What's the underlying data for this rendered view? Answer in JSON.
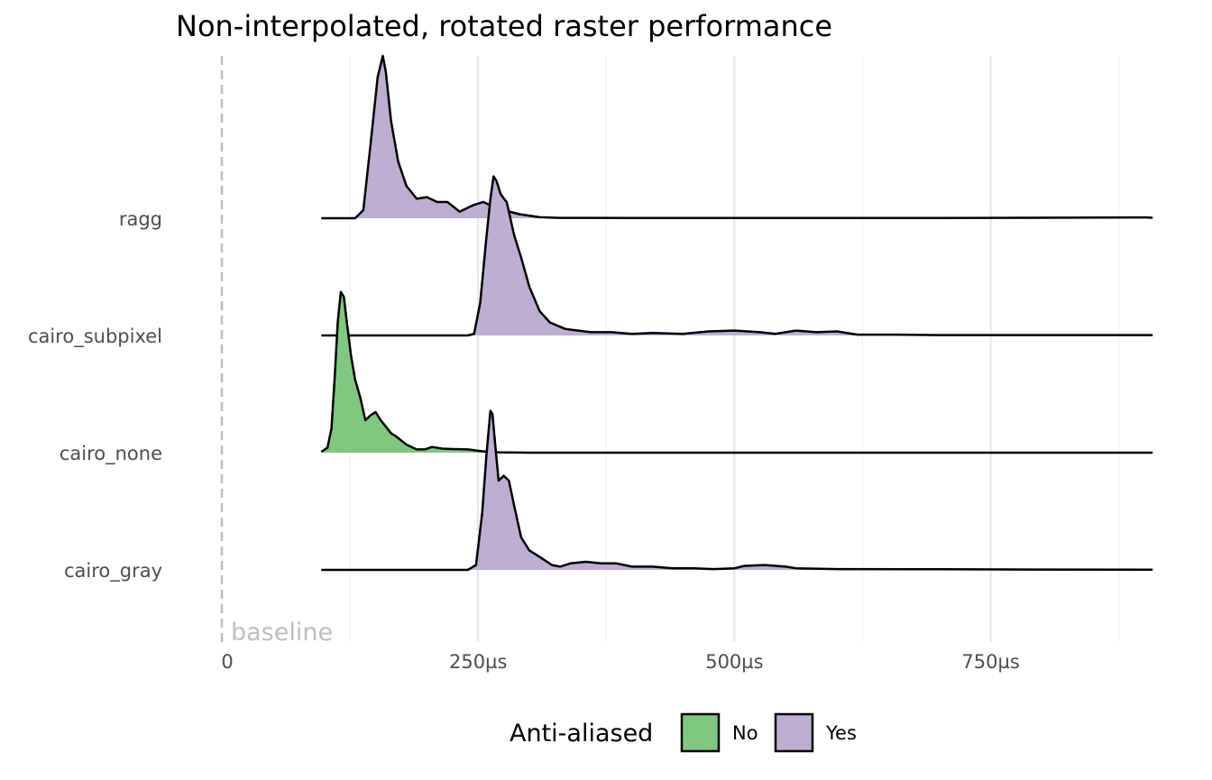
{
  "chart_data": {
    "type": "ridgeline",
    "title": "Non-interpolated, rotated raster performance",
    "xlabel": "",
    "ylabel": "",
    "x_unit": "µs",
    "xlim": [
      0,
      908
    ],
    "x_ticks": [
      {
        "value": 0,
        "label": "0"
      },
      {
        "value": 250,
        "label": "250µs"
      },
      {
        "value": 500,
        "label": "500µs"
      },
      {
        "value": 750,
        "label": "750µs"
      }
    ],
    "x_minor_grid": [
      125,
      375,
      625,
      875
    ],
    "grid": true,
    "reference_line": {
      "x": 0,
      "label": "baseline",
      "style": "dashed",
      "color": "#bebebe"
    },
    "legend": {
      "title": "Anti-aliased",
      "position": "bottom",
      "entries": [
        {
          "label": "No",
          "color": "#7fc97f"
        },
        {
          "label": "Yes",
          "color": "#beaed4"
        }
      ]
    },
    "series": [
      {
        "category": "ragg",
        "anti_aliased": "Yes",
        "color": "#beaed4",
        "x_range": [
          97,
          908
        ],
        "density": [
          [
            97,
            0
          ],
          [
            130,
            0
          ],
          [
            138,
            0.05
          ],
          [
            145,
            0.45
          ],
          [
            152,
            0.87
          ],
          [
            157,
            1.0
          ],
          [
            160,
            0.9
          ],
          [
            165,
            0.6
          ],
          [
            172,
            0.35
          ],
          [
            180,
            0.2
          ],
          [
            190,
            0.12
          ],
          [
            200,
            0.13
          ],
          [
            210,
            0.1
          ],
          [
            220,
            0.1
          ],
          [
            232,
            0.04
          ],
          [
            245,
            0.08
          ],
          [
            255,
            0.1
          ],
          [
            265,
            0.07
          ],
          [
            275,
            0.05
          ],
          [
            290,
            0.025
          ],
          [
            310,
            0.006
          ],
          [
            330,
            0.002
          ],
          [
            360,
            0.002
          ],
          [
            400,
            0.001
          ],
          [
            500,
            0.001
          ],
          [
            700,
            0.001
          ],
          [
            900,
            0.005
          ],
          [
            908,
            0.003
          ]
        ]
      },
      {
        "category": "cairo_subpixel",
        "anti_aliased": "Yes",
        "color": "#beaed4",
        "x_range": [
          97,
          908
        ],
        "density": [
          [
            97,
            0
          ],
          [
            240,
            0
          ],
          [
            246,
            0.01
          ],
          [
            252,
            0.2
          ],
          [
            258,
            0.6
          ],
          [
            262,
            0.84
          ],
          [
            265,
            0.98
          ],
          [
            268,
            0.95
          ],
          [
            272,
            0.87
          ],
          [
            278,
            0.82
          ],
          [
            285,
            0.62
          ],
          [
            292,
            0.48
          ],
          [
            300,
            0.3
          ],
          [
            310,
            0.15
          ],
          [
            320,
            0.08
          ],
          [
            335,
            0.04
          ],
          [
            360,
            0.02
          ],
          [
            380,
            0.02
          ],
          [
            400,
            0.01
          ],
          [
            420,
            0.015
          ],
          [
            450,
            0.01
          ],
          [
            475,
            0.025
          ],
          [
            500,
            0.03
          ],
          [
            525,
            0.02
          ],
          [
            540,
            0.01
          ],
          [
            560,
            0.03
          ],
          [
            580,
            0.02
          ],
          [
            600,
            0.025
          ],
          [
            620,
            0.005
          ],
          [
            660,
            0.005
          ],
          [
            700,
            0.002
          ],
          [
            800,
            0.002
          ],
          [
            908,
            0.002
          ]
        ]
      },
      {
        "category": "cairo_none",
        "anti_aliased": "No",
        "color": "#7fc97f",
        "x_range": [
          97,
          908
        ],
        "density": [
          [
            97,
            0.005
          ],
          [
            103,
            0.03
          ],
          [
            107,
            0.15
          ],
          [
            110,
            0.45
          ],
          [
            113,
            0.8
          ],
          [
            116,
            0.99
          ],
          [
            119,
            0.96
          ],
          [
            122,
            0.8
          ],
          [
            126,
            0.6
          ],
          [
            130,
            0.45
          ],
          [
            135,
            0.34
          ],
          [
            140,
            0.2
          ],
          [
            145,
            0.23
          ],
          [
            150,
            0.25
          ],
          [
            155,
            0.2
          ],
          [
            160,
            0.16
          ],
          [
            165,
            0.12
          ],
          [
            170,
            0.1
          ],
          [
            180,
            0.05
          ],
          [
            190,
            0.02
          ],
          [
            198,
            0.02
          ],
          [
            205,
            0.035
          ],
          [
            215,
            0.025
          ],
          [
            225,
            0.022
          ],
          [
            240,
            0.02
          ],
          [
            255,
            0.008
          ],
          [
            270,
            0.002
          ],
          [
            300,
            0
          ],
          [
            908,
            0
          ]
        ]
      },
      {
        "category": "cairo_gray",
        "anti_aliased": "Yes",
        "color": "#beaed4",
        "x_range": [
          97,
          908
        ],
        "density": [
          [
            97,
            0
          ],
          [
            240,
            0
          ],
          [
            248,
            0.03
          ],
          [
            254,
            0.35
          ],
          [
            258,
            0.7
          ],
          [
            262,
            0.98
          ],
          [
            264,
            0.96
          ],
          [
            267,
            0.75
          ],
          [
            270,
            0.55
          ],
          [
            275,
            0.58
          ],
          [
            280,
            0.55
          ],
          [
            285,
            0.4
          ],
          [
            292,
            0.2
          ],
          [
            300,
            0.12
          ],
          [
            310,
            0.08
          ],
          [
            322,
            0.03
          ],
          [
            330,
            0.02
          ],
          [
            340,
            0.04
          ],
          [
            355,
            0.05
          ],
          [
            370,
            0.04
          ],
          [
            385,
            0.04
          ],
          [
            400,
            0.02
          ],
          [
            420,
            0.02
          ],
          [
            440,
            0.01
          ],
          [
            460,
            0.01
          ],
          [
            480,
            0.005
          ],
          [
            500,
            0.01
          ],
          [
            510,
            0.025
          ],
          [
            530,
            0.03
          ],
          [
            550,
            0.02
          ],
          [
            560,
            0.01
          ],
          [
            600,
            0.005
          ],
          [
            700,
            0.004
          ],
          [
            800,
            0.002
          ],
          [
            908,
            0.001
          ]
        ]
      }
    ]
  }
}
